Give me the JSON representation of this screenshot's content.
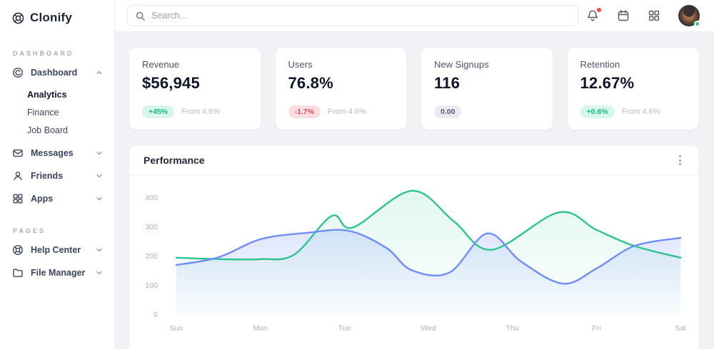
{
  "app": {
    "name": "Clonify"
  },
  "sidebar": {
    "sections": [
      {
        "label": "DASHBOARD",
        "items": [
          {
            "id": "dashboard",
            "icon": "dashboard-icon",
            "label": "Dashboard",
            "chevron": "up",
            "children": [
              {
                "label": "Analytics",
                "active": true
              },
              {
                "label": "Finance",
                "active": false
              },
              {
                "label": "Job Board",
                "active": false
              }
            ]
          },
          {
            "id": "messages",
            "icon": "messages-icon",
            "label": "Messages",
            "chevron": "down",
            "children": []
          },
          {
            "id": "friends",
            "icon": "friends-icon",
            "label": "Friends",
            "chevron": "down",
            "children": []
          },
          {
            "id": "apps",
            "icon": "apps-icon",
            "label": "Apps",
            "chevron": "down",
            "children": []
          }
        ]
      },
      {
        "label": "PAGES",
        "items": [
          {
            "id": "help-center",
            "icon": "help-icon",
            "label": "Help Center",
            "chevron": "down",
            "children": []
          },
          {
            "id": "file-manager",
            "icon": "folder-icon",
            "label": "File Manager",
            "chevron": "down",
            "children": []
          }
        ]
      }
    ]
  },
  "topbar": {
    "search_placeholder": "Search...",
    "bell_has_notification": true,
    "avatar_online": true
  },
  "stats": [
    {
      "label": "Revenue",
      "value": "$56,945",
      "badge": "+45%",
      "badge_type": "positive",
      "note": "From 4.6%"
    },
    {
      "label": "Users",
      "value": "76.8%",
      "badge": "-1.7%",
      "badge_type": "negative",
      "note": "From 4.6%"
    },
    {
      "label": "New Signups",
      "value": "116",
      "badge": "0.00",
      "badge_type": "neutral",
      "note": ""
    },
    {
      "label": "Retention",
      "value": "12.67%",
      "badge": "+0.6%",
      "badge_type": "positive",
      "note": "From 4.6%"
    }
  ],
  "chart_data": {
    "type": "area",
    "title": "Performance",
    "categories": [
      "Sun",
      "Mon",
      "Tue",
      "Wed",
      "Thu",
      "Fri",
      "Sat"
    ],
    "y_ticks": [
      0,
      100,
      200,
      300,
      400
    ],
    "ylim": [
      0,
      430
    ],
    "grid": false,
    "legend": "none",
    "axis_label_color": "#a9b0bd",
    "series": [
      {
        "name": "series-green",
        "color": "#2cc48e",
        "fill_opacity_top": 0.13,
        "fill_opacity_bottom": 0.01,
        "points": [
          [
            0,
            195
          ],
          [
            0.5,
            190
          ],
          [
            1,
            190
          ],
          [
            1.4,
            205
          ],
          [
            1.85,
            338
          ],
          [
            2.1,
            298
          ],
          [
            2.8,
            424
          ],
          [
            3.3,
            320
          ],
          [
            3.75,
            222
          ],
          [
            4.55,
            350
          ],
          [
            5,
            290
          ],
          [
            5.45,
            235
          ],
          [
            6,
            195
          ]
        ]
      },
      {
        "name": "series-blue",
        "color": "#6e8ef5",
        "fill_opacity_top": 0.3,
        "fill_opacity_bottom": 0.02,
        "points": [
          [
            0,
            170
          ],
          [
            0.5,
            196
          ],
          [
            1,
            258
          ],
          [
            1.55,
            280
          ],
          [
            2.05,
            287
          ],
          [
            2.5,
            228
          ],
          [
            2.8,
            152
          ],
          [
            3.25,
            144
          ],
          [
            3.7,
            278
          ],
          [
            4.1,
            182
          ],
          [
            4.6,
            106
          ],
          [
            5,
            158
          ],
          [
            5.45,
            235
          ],
          [
            6,
            263
          ]
        ]
      }
    ]
  }
}
